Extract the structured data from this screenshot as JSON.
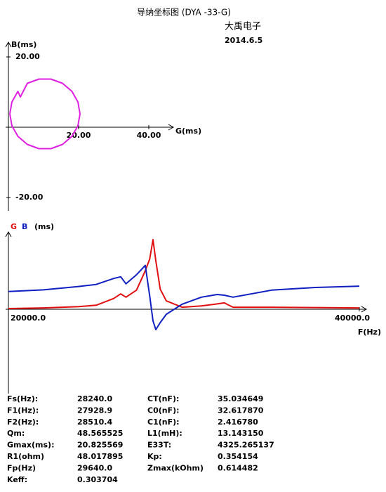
{
  "header": {
    "title": "导纳坐标图 (DYA -33-G)",
    "company": "大禹电子",
    "date": "2014.6.5"
  },
  "chart_data": [
    {
      "type": "line",
      "x_label": "G(ms)",
      "y_label": "B(ms)",
      "color": "#e020e0",
      "x": [
        0.4,
        1.0,
        2.7,
        3.4,
        5.4,
        8.7,
        12.1,
        15.4,
        18.1,
        19.8,
        20.4,
        19.8,
        18.1,
        15.4,
        12.1,
        8.7,
        5.4,
        2.7,
        1.0,
        0.4
      ],
      "values": [
        3.8,
        7.2,
        10.2,
        8.6,
        12.5,
        13.7,
        13.7,
        12.5,
        10.2,
        7.2,
        3.8,
        0.4,
        -2.6,
        -4.9,
        -6.1,
        -6.1,
        -4.9,
        -2.6,
        0.4,
        3.8
      ],
      "xlim": [
        0,
        47
      ],
      "ylim": [
        -24,
        24
      ],
      "xticks": [
        {
          "value": 20,
          "label": "20.00"
        },
        {
          "value": 40,
          "label": "40.00"
        }
      ],
      "yticks": [
        {
          "value": 20,
          "label": "20.00"
        },
        {
          "value": -20,
          "label": "-20.00"
        }
      ]
    },
    {
      "type": "line",
      "x_label": "F(Hz)",
      "y_label": "(ms)",
      "x": [
        20000,
        22000,
        24000,
        25000,
        26000,
        26400,
        26700,
        27300,
        27800,
        28050,
        28240,
        28400,
        28650,
        29000,
        29900,
        31000,
        31900,
        32300,
        32800,
        35000,
        37500,
        40000
      ],
      "series": [
        {
          "name": "G",
          "color": "#e01010",
          "values": [
            0.2,
            0.4,
            0.8,
            1.2,
            3.2,
            4.6,
            3.6,
            5.7,
            11.5,
            15,
            20.8,
            14.5,
            6,
            2.5,
            0.6,
            1.0,
            1.6,
            1.9,
            0.6,
            0.6,
            0.5,
            0.4
          ]
        },
        {
          "name": "B",
          "color": "#1020c0",
          "values": [
            5.3,
            5.8,
            6.8,
            7.4,
            9.2,
            9.7,
            7.6,
            10.3,
            13.1,
            4.0,
            -3.5,
            -6.1,
            -4,
            -1.5,
            1.5,
            3.6,
            4.4,
            4.2,
            3.6,
            5.7,
            6.5,
            6.9
          ]
        }
      ],
      "xlim": [
        20000,
        40400
      ],
      "ylim": [
        -25,
        21
      ],
      "xticks": [
        {
          "value": 20000,
          "label": "20000.0"
        },
        {
          "value": 40000,
          "label": "40000.0"
        }
      ]
    }
  ],
  "parameters": {
    "rows": [
      [
        "Fs(Hz):",
        "28240.0",
        "CT(nF):",
        "35.034649"
      ],
      [
        "F1(Hz):",
        "27928.9",
        "C0(nF):",
        "32.617870"
      ],
      [
        "F2(Hz):",
        "28510.4",
        "C1(nF):",
        "2.416780"
      ],
      [
        "Qm:",
        "48.565525",
        "L1(mH):",
        "13.143150"
      ],
      [
        "Gmax(ms):",
        "20.825569",
        "E33T:",
        "4325.265137"
      ],
      [
        "R1(ohm)",
        "48.017895",
        "Kp:",
        "0.354154"
      ],
      [
        "Fp(Hz)",
        "29640.0",
        "Zmax(kOhm)",
        "0.614482"
      ],
      [
        "Keff:",
        "0.303704"
      ]
    ]
  }
}
